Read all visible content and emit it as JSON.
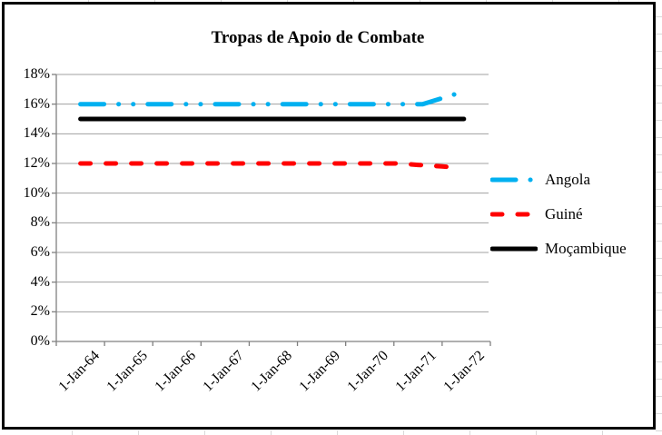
{
  "chart_data": {
    "type": "line",
    "title": "Tropas de Apoio de Combate",
    "grid": "horizontal",
    "legend_position": "right",
    "y_axis": {
      "ticks": [
        0,
        2,
        4,
        6,
        8,
        10,
        12,
        14,
        16,
        18
      ],
      "format": "percent",
      "ylim": [
        0,
        18
      ]
    },
    "x_axis": {
      "tick_labels": [
        "1-Jan-64",
        "1-Jan-65",
        "1-Jan-66",
        "1-Jan-67",
        "1-Jan-68",
        "1-Jan-69",
        "1-Jan-70",
        "1-Jan-71",
        "1-Jan-72"
      ]
    },
    "series": [
      {
        "name": "Angola",
        "color": "#00B0F0",
        "style": "long-dash-dot-dot",
        "points": [
          [
            1964.0,
            16.0
          ],
          [
            1971.1,
            16.0
          ],
          [
            1971.8,
            16.7
          ]
        ]
      },
      {
        "name": "Guiné",
        "color": "#FF0000",
        "style": "dash",
        "points": [
          [
            1964.0,
            12.0
          ],
          [
            1970.6,
            12.0
          ],
          [
            1971.0,
            11.9
          ],
          [
            1971.5,
            11.8
          ],
          [
            1971.9,
            11.7
          ]
        ]
      },
      {
        "name": "Moçambique",
        "color": "#000000",
        "style": "solid",
        "points": [
          [
            1964.0,
            15.0
          ],
          [
            1971.95,
            15.0
          ]
        ]
      }
    ]
  },
  "colors": {
    "gridline": "#a0a0a0",
    "axis": "#808080",
    "chart_border": "#000000",
    "sheet_gridline": "#d9d9d9"
  }
}
